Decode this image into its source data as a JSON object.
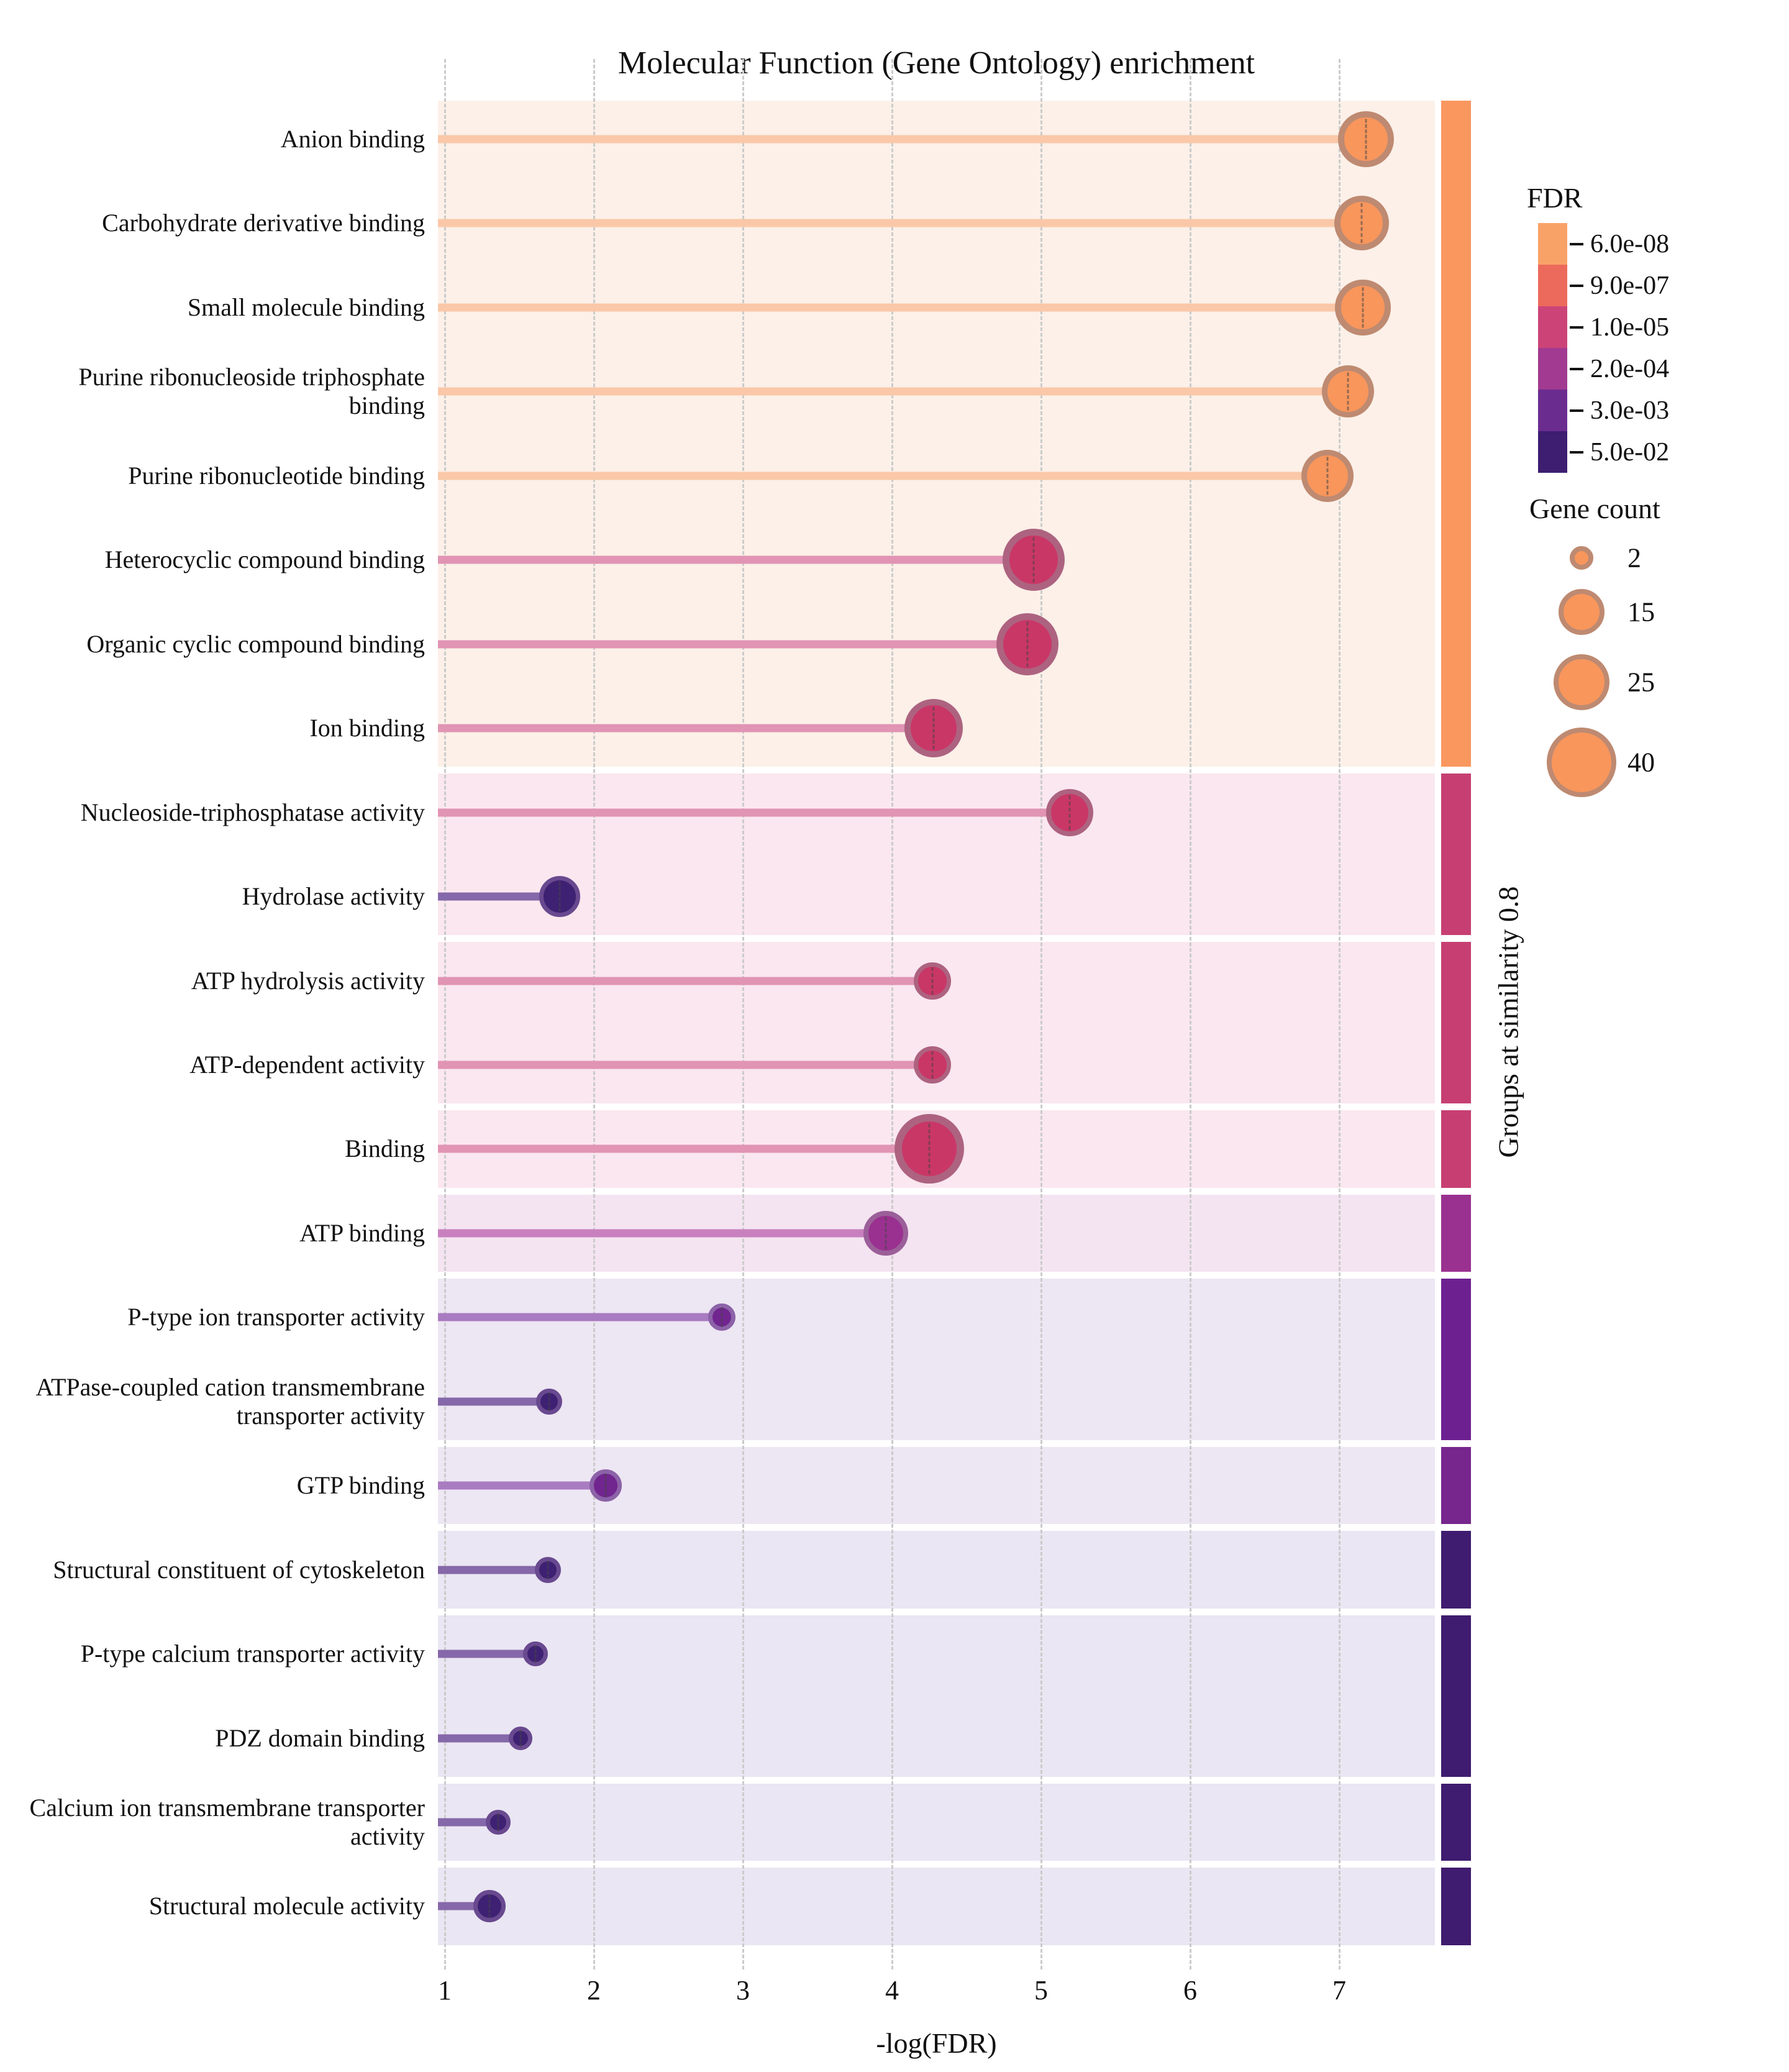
{
  "title": "Molecular Function (Gene Ontology) enrichment",
  "axis": {
    "x_label": "-log(FDR)",
    "x_ticks": [
      "1",
      "2",
      "3",
      "4",
      "5",
      "6",
      "7"
    ]
  },
  "right_axis_label": "Groups at similarity 0.8",
  "legend_fdr": {
    "title": "FDR",
    "entries": [
      {
        "label": "6.0e-08",
        "color": "#F9A268"
      },
      {
        "label": "9.0e-07",
        "color": "#EC6A5C"
      },
      {
        "label": "1.0e-05",
        "color": "#CC4477"
      },
      {
        "label": "2.0e-04",
        "color": "#A13A90"
      },
      {
        "label": "3.0e-03",
        "color": "#6B2C90"
      },
      {
        "label": "5.0e-02",
        "color": "#3D1E70"
      }
    ]
  },
  "legend_size": {
    "title": "Gene count",
    "fill": "#F8965C",
    "stroke": "#BE8A71",
    "entries": [
      {
        "label": "2",
        "r": 19
      },
      {
        "label": "15",
        "r": 37
      },
      {
        "label": "25",
        "r": 45
      },
      {
        "label": "40",
        "r": 56
      }
    ]
  },
  "chart_data": {
    "type": "lollipop",
    "xlabel": "-log(FDR)",
    "xlim": [
      1,
      7.65
    ],
    "grid": "dashed-vertical",
    "fdr_bins": {
      "orange": {
        "fill": "#F8965C",
        "stroke": "#BE8A71",
        "stem": "#FAC8A8"
      },
      "magenta": {
        "fill": "#C93767",
        "stroke": "#AD6380",
        "stem": "#E194B4"
      },
      "purpleMagenta": {
        "fill": "#9A3190",
        "stroke": "#9B5F99",
        "stem": "#C980BE"
      },
      "purple": {
        "fill": "#71258F",
        "stroke": "#8C62A8",
        "stem": "#A97BC1"
      },
      "indigo": {
        "fill": "#3F2173",
        "stroke": "#69498F",
        "stem": "#8568A9"
      }
    },
    "points": [
      {
        "label": "Anion binding",
        "value": 7.18,
        "gene_count": 25,
        "radius": 45,
        "bin": "orange"
      },
      {
        "label": "Carbohydrate derivative binding",
        "value": 7.15,
        "gene_count": 24,
        "radius": 44,
        "bin": "orange"
      },
      {
        "label": "Small molecule binding",
        "value": 7.16,
        "gene_count": 25,
        "radius": 45,
        "bin": "orange"
      },
      {
        "label": "Purine ribonucleoside triphosphate binding",
        "value": 7.06,
        "gene_count": 22,
        "radius": 42,
        "bin": "orange"
      },
      {
        "label": "Purine ribonucleotide binding",
        "value": 6.92,
        "gene_count": 22,
        "radius": 42,
        "bin": "orange"
      },
      {
        "label": "Heterocyclic compound binding",
        "value": 4.95,
        "gene_count": 30,
        "radius": 50,
        "bin": "magenta"
      },
      {
        "label": "Organic cyclic compound binding",
        "value": 4.91,
        "gene_count": 30,
        "radius": 50,
        "bin": "magenta"
      },
      {
        "label": "Ion binding",
        "value": 4.28,
        "gene_count": 27,
        "radius": 47,
        "bin": "magenta"
      },
      {
        "label": "Nucleoside-triphosphatase activity",
        "value": 5.19,
        "gene_count": 16,
        "radius": 38,
        "bin": "magenta"
      },
      {
        "label": "Hydrolase activity",
        "value": 1.77,
        "gene_count": 11,
        "radius": 33,
        "bin": "indigo"
      },
      {
        "label": "ATP hydrolysis activity",
        "value": 4.27,
        "gene_count": 9,
        "radius": 30,
        "bin": "magenta"
      },
      {
        "label": "ATP-dependent activity",
        "value": 4.27,
        "gene_count": 9,
        "radius": 30,
        "bin": "magenta"
      },
      {
        "label": "Binding",
        "value": 4.25,
        "gene_count": 40,
        "radius": 56,
        "bin": "magenta"
      },
      {
        "label": "ATP binding",
        "value": 3.96,
        "gene_count": 14,
        "radius": 36,
        "bin": "purpleMagenta"
      },
      {
        "label": "P-type ion transporter activity",
        "value": 2.86,
        "gene_count": 4,
        "radius": 22,
        "bin": "purple"
      },
      {
        "label": "ATPase-coupled cation transmembrane transporter activity",
        "value": 1.7,
        "gene_count": 3,
        "radius": 21,
        "bin": "indigo"
      },
      {
        "label": "GTP binding",
        "value": 2.08,
        "gene_count": 6,
        "radius": 26,
        "bin": "purple"
      },
      {
        "label": "Structural constituent of cytoskeleton",
        "value": 1.69,
        "gene_count": 3,
        "radius": 21,
        "bin": "indigo"
      },
      {
        "label": "P-type calcium transporter activity",
        "value": 1.61,
        "gene_count": 3,
        "radius": 20,
        "bin": "indigo"
      },
      {
        "label": "PDZ domain binding",
        "value": 1.51,
        "gene_count": 2,
        "radius": 19,
        "bin": "indigo"
      },
      {
        "label": "Calcium ion transmembrane transporter activity",
        "value": 1.36,
        "gene_count": 3,
        "radius": 20,
        "bin": "indigo"
      },
      {
        "label": "Structural molecule activity",
        "value": 1.3,
        "gene_count": 6,
        "radius": 26,
        "bin": "indigo"
      }
    ],
    "groups": [
      {
        "start": 0,
        "end": 7,
        "band": "#FCF0E8",
        "bar": "#F9975F"
      },
      {
        "start": 8,
        "end": 9,
        "band": "#FAE7EF",
        "bar": "#C73F72"
      },
      {
        "start": 10,
        "end": 11,
        "band": "#FAE7EF",
        "bar": "#C73F72"
      },
      {
        "start": 12,
        "end": 12,
        "band": "#FAE7EF",
        "bar": "#C73F72"
      },
      {
        "start": 13,
        "end": 13,
        "band": "#F4E4F1",
        "bar": "#9A3190"
      },
      {
        "start": 14,
        "end": 15,
        "band": "#EDE6F3",
        "bar": "#6D2191"
      },
      {
        "start": 16,
        "end": 16,
        "band": "#EDE6F3",
        "bar": "#77268E"
      },
      {
        "start": 17,
        "end": 17,
        "band": "#EAE6F3",
        "bar": "#3F1C6F"
      },
      {
        "start": 18,
        "end": 19,
        "band": "#EAE6F3",
        "bar": "#3F1C6F"
      },
      {
        "start": 20,
        "end": 20,
        "band": "#EAE6F3",
        "bar": "#3F1C6F"
      },
      {
        "start": 21,
        "end": 21,
        "band": "#EAE6F3",
        "bar": "#3F1C6F"
      }
    ]
  }
}
